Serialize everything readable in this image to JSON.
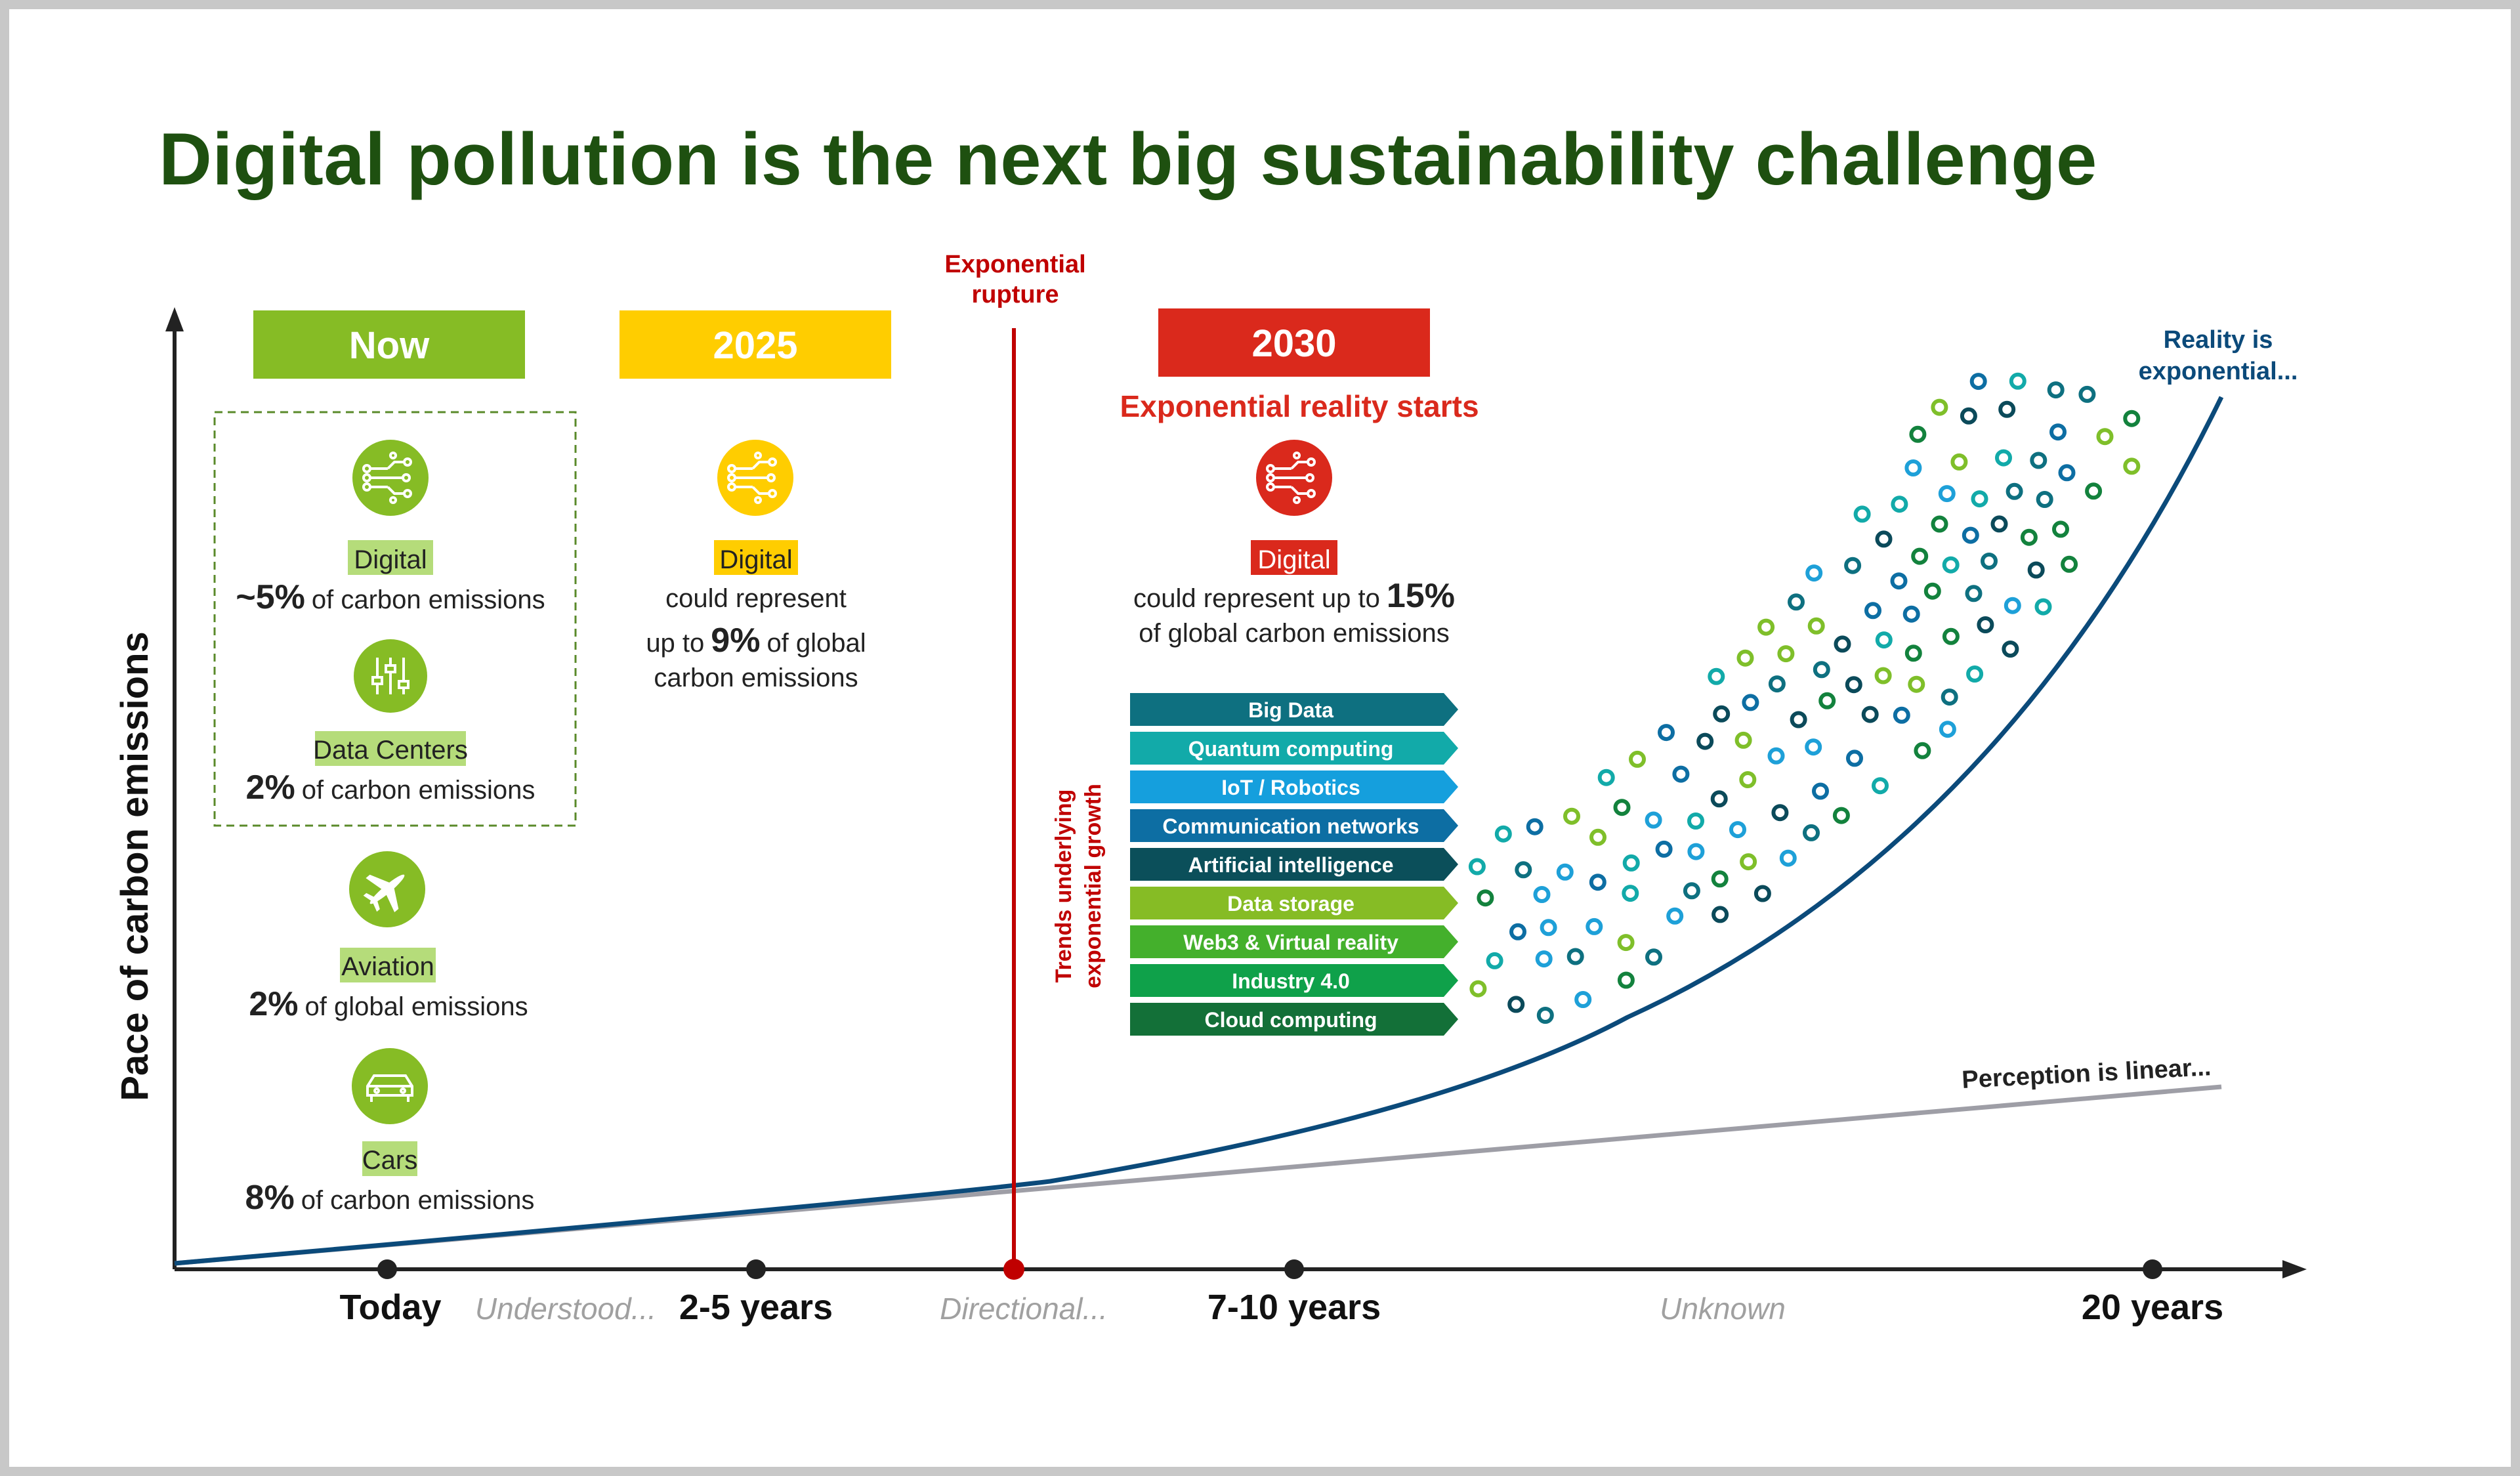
{
  "title": "Digital pollution is the next big sustainability challenge",
  "y_axis_label": "Pace of carbon emissions",
  "x_axis": {
    "ticks": [
      "Today",
      "2-5 years",
      "7-10 years",
      "20 years"
    ],
    "phases": [
      "Understood...",
      "Directional...",
      "Unknown"
    ]
  },
  "rupture": {
    "line1": "Exponential",
    "line2": "rupture"
  },
  "curves": {
    "reality_line1": "Reality is",
    "reality_line2": "exponential...",
    "perception": "Perception is linear..."
  },
  "now": {
    "label": "Now",
    "items": [
      {
        "name": "Digital",
        "value": "~5%",
        "desc": "of carbon emissions",
        "icon": "circuit-icon"
      },
      {
        "name": "Data Centers",
        "value": "2%",
        "desc": "of carbon emissions",
        "icon": "sliders-icon"
      },
      {
        "name": "Aviation",
        "value": "2%",
        "desc": "of global emissions",
        "icon": "airplane-icon"
      },
      {
        "name": "Cars",
        "value": "8%",
        "desc": "of carbon emissions",
        "icon": "car-icon"
      }
    ]
  },
  "y2025": {
    "label": "2025",
    "item": "Digital",
    "line1": "could represent",
    "line2_pre": "up to",
    "value": "9%",
    "line2_post": "of global",
    "line3": "carbon emissions"
  },
  "y2030": {
    "label": "2030",
    "subtitle": "Exponential reality starts",
    "item": "Digital",
    "line1_pre": "could represent up to",
    "value": "15%",
    "line2": "of global carbon emissions"
  },
  "trends_label_line1": "Trends underlying",
  "trends_label_line2": "exponential growth",
  "trends": [
    {
      "label": "Big Data",
      "color": "#0e7080"
    },
    {
      "label": "Quantum computing",
      "color": "#12aaa9"
    },
    {
      "label": "IoT / Robotics",
      "color": "#159fdd"
    },
    {
      "label": "Communication networks",
      "color": "#0d6ea3"
    },
    {
      "label": "Artificial intelligence",
      "color": "#0b4f5a"
    },
    {
      "label": "Data storage",
      "color": "#86bc25"
    },
    {
      "label": "Web3 & Virtual reality",
      "color": "#44b02c"
    },
    {
      "label": "Industry 4.0",
      "color": "#0fa14a"
    },
    {
      "label": "Cloud computing",
      "color": "#137038"
    }
  ],
  "colors": {
    "now": "#86bc25",
    "y2025": "#ffcd00",
    "y2030": "#da291c",
    "reality": "#0b4a7a",
    "perception": "#9e9ea6",
    "rupture": "#c00000",
    "title": "#1e5010"
  }
}
